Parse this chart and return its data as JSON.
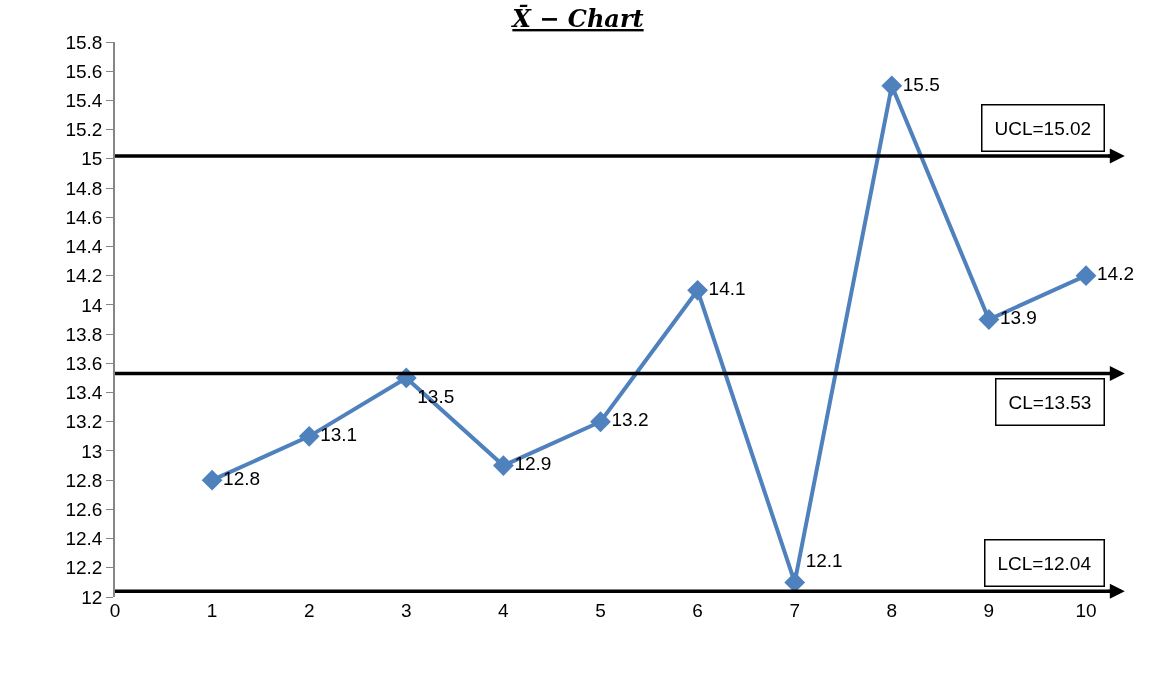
{
  "chart_data": {
    "type": "line",
    "title": "X̄ − Chart",
    "x": [
      1,
      2,
      3,
      4,
      5,
      6,
      7,
      8,
      9,
      10
    ],
    "series": [
      {
        "color": "#4f81bd",
        "values": [
          12.8,
          13.1,
          13.5,
          12.9,
          13.2,
          14.1,
          12.1,
          15.5,
          13.9,
          14.2
        ]
      }
    ],
    "xlim": [
      0,
      10
    ],
    "xticks": [
      0,
      1,
      2,
      3,
      4,
      5,
      6,
      7,
      8,
      9,
      10
    ],
    "ylim": [
      12,
      15.8
    ],
    "yticks": [
      12,
      12.2,
      12.4,
      12.6,
      12.8,
      13,
      13.2,
      13.4,
      13.6,
      13.8,
      14,
      14.2,
      14.4,
      14.6,
      14.8,
      15,
      15.2,
      15.4,
      15.6,
      15.8
    ],
    "ref_lines": [
      {
        "axis": "y",
        "value": 15.02,
        "label": "UCL=15.02",
        "color": "#000000"
      },
      {
        "axis": "y",
        "value": 13.53,
        "label": "CL=13.53",
        "color": "#000000"
      },
      {
        "axis": "y",
        "value": 12.04,
        "label": "LCL=12.04",
        "color": "#000000"
      }
    ],
    "data_labels": true,
    "marker": "diamond",
    "line_style": "solid",
    "grid": false,
    "legend": false
  }
}
